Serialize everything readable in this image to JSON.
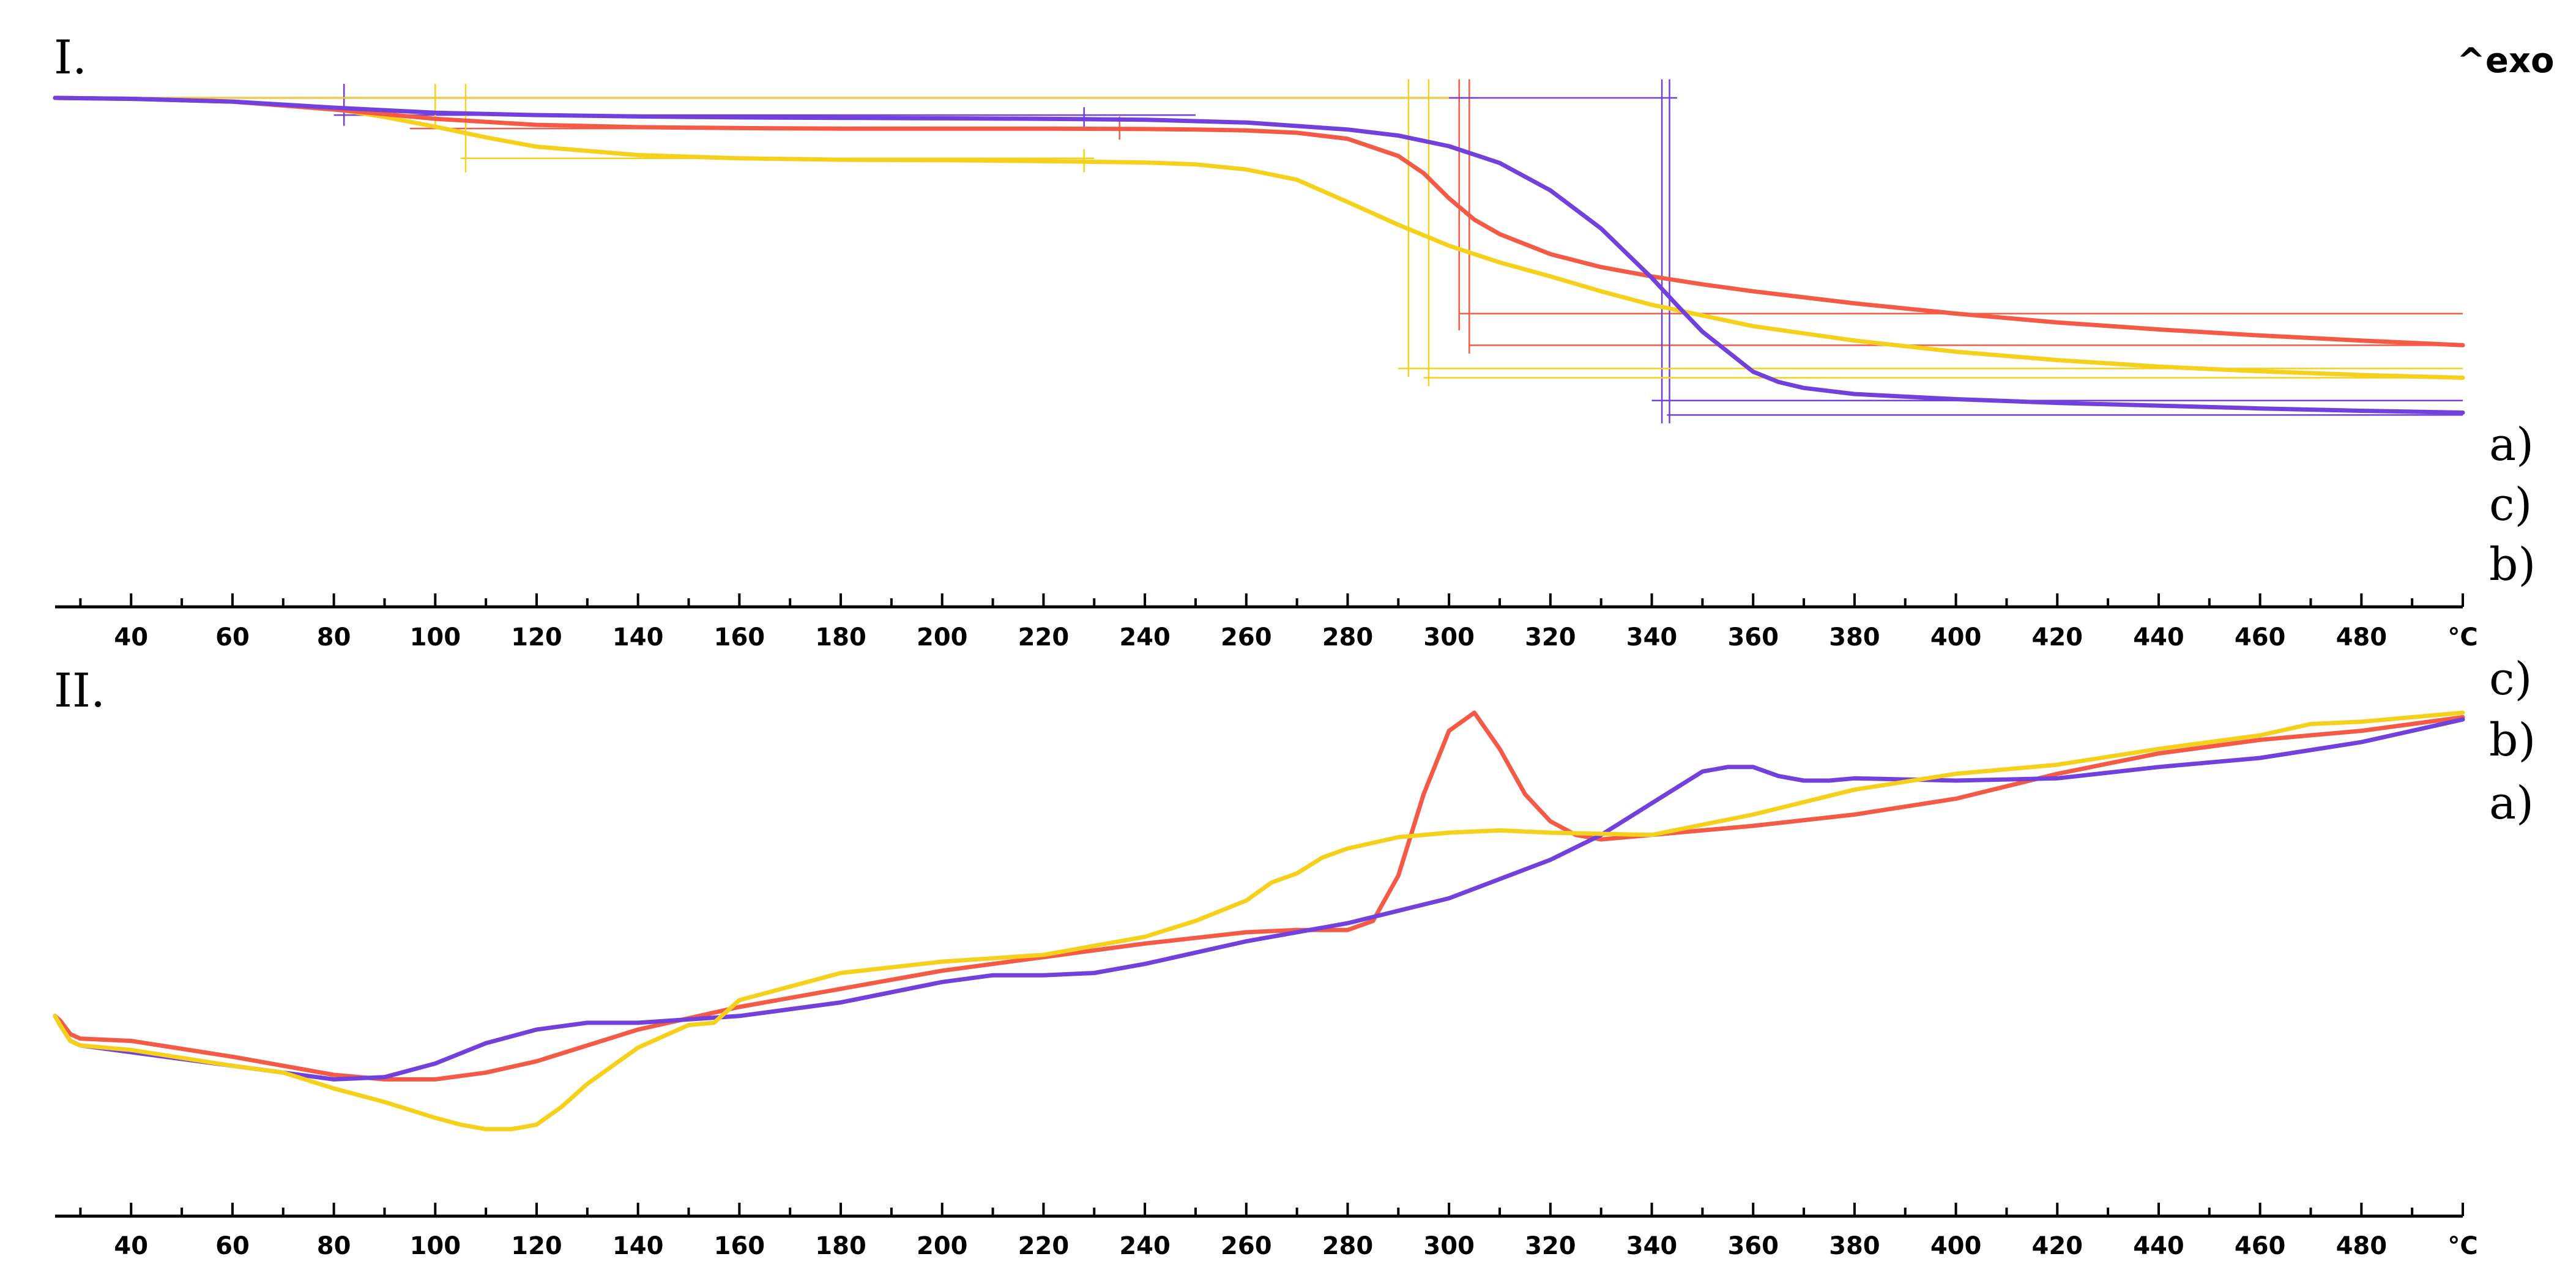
{
  "figure": {
    "exo_label": "^exo",
    "x_unit": "°C",
    "x_ticks": [
      40,
      60,
      80,
      100,
      120,
      140,
      160,
      180,
      200,
      220,
      240,
      260,
      280,
      300,
      320,
      340,
      360,
      380,
      400,
      420,
      440,
      460,
      480
    ],
    "colors": {
      "a": "#f45a46",
      "b": "#7240dc",
      "c": "#f6d11b"
    }
  },
  "chart_data": [
    {
      "type": "line",
      "panel_label": "I.",
      "title": "",
      "xlabel": "°C",
      "ylabel": "",
      "xlim": [
        25,
        500
      ],
      "ylim": [
        0,
        100
      ],
      "grid": false,
      "series": [
        {
          "name": "a)",
          "color": "#f45a46",
          "x": [
            25,
            40,
            60,
            80,
            100,
            120,
            140,
            160,
            180,
            200,
            220,
            240,
            250,
            260,
            270,
            280,
            290,
            295,
            300,
            305,
            310,
            320,
            330,
            340,
            350,
            360,
            380,
            400,
            420,
            440,
            460,
            480,
            500
          ],
          "y": [
            100,
            99.8,
            99.2,
            97.5,
            95.5,
            94.2,
            93.7,
            93.5,
            93.4,
            93.4,
            93.4,
            93.3,
            93.2,
            93.0,
            92.5,
            91.2,
            87.5,
            83.8,
            78.4,
            73.8,
            70.7,
            66.4,
            63.6,
            61.6,
            59.9,
            58.4,
            55.8,
            53.6,
            51.7,
            50.2,
            48.9,
            47.8,
            46.8
          ]
        },
        {
          "name": "b)",
          "color": "#7240dc",
          "x": [
            25,
            40,
            60,
            80,
            100,
            120,
            140,
            160,
            180,
            200,
            220,
            240,
            260,
            280,
            290,
            300,
            310,
            320,
            330,
            340,
            345,
            350,
            360,
            365,
            370,
            380,
            400,
            420,
            440,
            460,
            480,
            500
          ],
          "y": [
            100,
            99.8,
            99.2,
            97.9,
            96.8,
            96.3,
            96.0,
            95.8,
            95.7,
            95.6,
            95.5,
            95.3,
            94.7,
            93.2,
            91.9,
            89.6,
            86.0,
            80.1,
            71.9,
            61.3,
            55.4,
            49.7,
            41.1,
            38.9,
            37.6,
            36.3,
            35.2,
            34.4,
            33.8,
            33.2,
            32.7,
            32.3
          ]
        },
        {
          "name": "c)",
          "color": "#f6d11b",
          "x": [
            25,
            40,
            60,
            80,
            90,
            100,
            110,
            120,
            140,
            160,
            180,
            200,
            220,
            240,
            250,
            260,
            270,
            280,
            290,
            300,
            310,
            320,
            330,
            340,
            360,
            380,
            400,
            420,
            440,
            460,
            480,
            500
          ],
          "y": [
            100,
            99.8,
            99.2,
            97.6,
            95.9,
            93.8,
            91.5,
            89.5,
            87.7,
            87.0,
            86.7,
            86.6,
            86.4,
            86.1,
            85.7,
            84.6,
            82.4,
            77.6,
            72.7,
            68.2,
            64.6,
            61.6,
            58.4,
            55.5,
            50.9,
            47.8,
            45.4,
            43.6,
            42.2,
            41.2,
            40.4,
            39.8
          ]
        }
      ]
    },
    {
      "type": "line",
      "panel_label": "II.",
      "title": "",
      "xlabel": "°C",
      "ylabel": "",
      "xlim": [
        25,
        500
      ],
      "ylim": [
        0,
        100
      ],
      "grid": false,
      "series": [
        {
          "name": "a)",
          "color": "#f45a46",
          "x": [
            25,
            26,
            28,
            30,
            40,
            60,
            80,
            90,
            100,
            110,
            120,
            140,
            160,
            180,
            200,
            220,
            240,
            260,
            270,
            280,
            285,
            290,
            295,
            300,
            305,
            310,
            315,
            320,
            325,
            330,
            340,
            360,
            380,
            400,
            420,
            440,
            460,
            480,
            500
          ],
          "y": [
            33,
            32,
            29,
            28,
            27.5,
            24,
            20,
            19,
            19,
            20.5,
            23,
            30,
            35,
            39,
            43,
            46,
            49,
            51.5,
            52,
            52,
            54,
            64,
            82,
            96,
            100,
            92,
            82,
            76,
            73,
            72,
            73,
            75,
            77.5,
            81,
            86.5,
            91,
            94,
            96,
            99
          ]
        },
        {
          "name": "b)",
          "color": "#7240dc",
          "x": [
            25,
            26,
            28,
            30,
            40,
            60,
            80,
            90,
            100,
            110,
            120,
            130,
            140,
            160,
            180,
            200,
            210,
            220,
            230,
            240,
            260,
            280,
            300,
            320,
            330,
            340,
            350,
            355,
            360,
            365,
            370,
            375,
            380,
            400,
            420,
            440,
            460,
            480,
            500
          ],
          "y": [
            33,
            31,
            27.5,
            26.5,
            25,
            22,
            19,
            19.5,
            22.5,
            27,
            30,
            31.5,
            31.5,
            33,
            36,
            40.5,
            42,
            42,
            42.5,
            44.5,
            49.5,
            53.5,
            59,
            67.5,
            73,
            80,
            87,
            88,
            88,
            86,
            85,
            85,
            85.5,
            85,
            85.5,
            88,
            90,
            93.5,
            98.5
          ]
        },
        {
          "name": "c)",
          "color": "#f6d11b",
          "x": [
            25,
            26,
            28,
            30,
            40,
            60,
            70,
            80,
            90,
            100,
            105,
            110,
            115,
            120,
            125,
            130,
            140,
            150,
            155,
            160,
            180,
            200,
            220,
            240,
            250,
            260,
            265,
            270,
            275,
            280,
            290,
            300,
            310,
            320,
            340,
            360,
            380,
            400,
            420,
            440,
            460,
            470,
            480,
            500
          ],
          "y": [
            33,
            31,
            27.5,
            26.5,
            25.5,
            22,
            20.5,
            17,
            14,
            10.5,
            9,
            8,
            8,
            9,
            13,
            18,
            26,
            31,
            31.5,
            36.5,
            42.5,
            45,
            46.5,
            50.5,
            54,
            58.5,
            62.5,
            64.5,
            68,
            70,
            72.5,
            73.5,
            74,
            73.5,
            73,
            77.5,
            83,
            86.5,
            88.5,
            92,
            95,
            97.5,
            98,
            100
          ]
        }
      ]
    }
  ]
}
